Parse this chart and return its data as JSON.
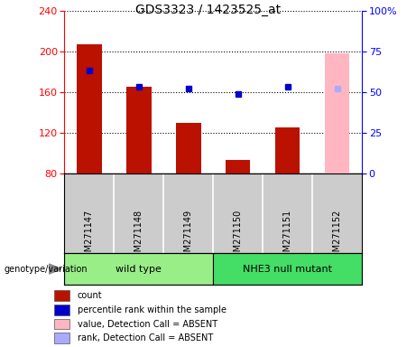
{
  "title": "GDS3323 / 1423525_at",
  "samples": [
    "GSM271147",
    "GSM271148",
    "GSM271149",
    "GSM271150",
    "GSM271151",
    "GSM271152"
  ],
  "count_values": [
    207,
    165,
    130,
    93,
    125,
    null
  ],
  "count_absent_values": [
    null,
    null,
    null,
    null,
    null,
    198
  ],
  "percentile_rank": [
    63,
    53,
    52,
    49,
    53,
    null
  ],
  "percentile_rank_absent": [
    null,
    null,
    null,
    null,
    null,
    52
  ],
  "ylim_left": [
    80,
    240
  ],
  "ylim_right": [
    0,
    100
  ],
  "yticks_left": [
    80,
    120,
    160,
    200,
    240
  ],
  "yticks_right": [
    0,
    25,
    50,
    75,
    100
  ],
  "groups": [
    {
      "label": "wild type",
      "indices": [
        0,
        1,
        2
      ],
      "color": "#99EE88"
    },
    {
      "label": "NHE3 null mutant",
      "indices": [
        3,
        4,
        5
      ],
      "color": "#44DD66"
    }
  ],
  "bar_color_present": "#BB1100",
  "bar_color_absent": "#FFB6C1",
  "dot_color_present": "#0000CC",
  "dot_color_absent": "#AAAAFF",
  "bar_width": 0.5,
  "plot_bg": "#FFFFFF",
  "label_bg": "#CCCCCC",
  "genotype_label": "genotype/variation",
  "legend_items": [
    {
      "label": "count",
      "color": "#BB1100"
    },
    {
      "label": "percentile rank within the sample",
      "color": "#0000CC"
    },
    {
      "label": "value, Detection Call = ABSENT",
      "color": "#FFB6C1"
    },
    {
      "label": "rank, Detection Call = ABSENT",
      "color": "#AAAAFF"
    }
  ]
}
